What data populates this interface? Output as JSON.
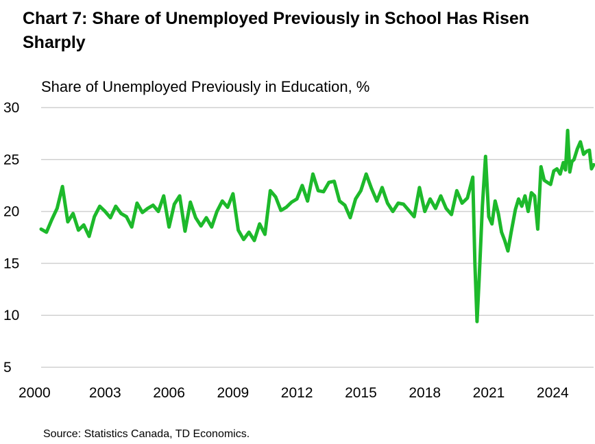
{
  "chart_data": {
    "type": "line",
    "title": "Chart 7: Share of Unemployed Previously in School Has Risen Sharply",
    "ylabel": "Share of Unemployed Previously in Education, %",
    "xlabel": "",
    "x_range": [
      2000.0,
      2025.92
    ],
    "ylim": [
      5,
      30
    ],
    "yticks": [
      "5",
      "10",
      "15",
      "20",
      "25",
      "30"
    ],
    "xticks": [
      "2000",
      "2003",
      "2006",
      "2009",
      "2012",
      "2015",
      "2018",
      "2021",
      "2024"
    ],
    "grid": "horizontal",
    "legend": "none",
    "series": [
      {
        "color": "#1db92b",
        "points": [
          [
            2000.0,
            18.3
          ],
          [
            2000.25,
            18.0
          ],
          [
            2000.5,
            19.2
          ],
          [
            2000.75,
            20.3
          ],
          [
            2001.0,
            22.4
          ],
          [
            2001.25,
            19.0
          ],
          [
            2001.5,
            19.8
          ],
          [
            2001.75,
            18.2
          ],
          [
            2002.0,
            18.7
          ],
          [
            2002.25,
            17.6
          ],
          [
            2002.5,
            19.5
          ],
          [
            2002.75,
            20.5
          ],
          [
            2003.0,
            20.0
          ],
          [
            2003.25,
            19.4
          ],
          [
            2003.5,
            20.5
          ],
          [
            2003.75,
            19.8
          ],
          [
            2004.0,
            19.5
          ],
          [
            2004.25,
            18.5
          ],
          [
            2004.5,
            20.8
          ],
          [
            2004.75,
            19.9
          ],
          [
            2005.0,
            20.3
          ],
          [
            2005.25,
            20.6
          ],
          [
            2005.5,
            20.0
          ],
          [
            2005.75,
            21.5
          ],
          [
            2006.0,
            18.5
          ],
          [
            2006.25,
            20.7
          ],
          [
            2006.5,
            21.5
          ],
          [
            2006.75,
            18.1
          ],
          [
            2007.0,
            20.9
          ],
          [
            2007.25,
            19.4
          ],
          [
            2007.5,
            18.6
          ],
          [
            2007.75,
            19.4
          ],
          [
            2008.0,
            18.5
          ],
          [
            2008.25,
            20.0
          ],
          [
            2008.5,
            21.0
          ],
          [
            2008.75,
            20.4
          ],
          [
            2009.0,
            21.7
          ],
          [
            2009.25,
            18.2
          ],
          [
            2009.5,
            17.3
          ],
          [
            2009.75,
            18.0
          ],
          [
            2010.0,
            17.2
          ],
          [
            2010.25,
            18.8
          ],
          [
            2010.5,
            17.8
          ],
          [
            2010.75,
            22.0
          ],
          [
            2011.0,
            21.4
          ],
          [
            2011.25,
            20.1
          ],
          [
            2011.5,
            20.4
          ],
          [
            2011.75,
            20.9
          ],
          [
            2012.0,
            21.2
          ],
          [
            2012.25,
            22.5
          ],
          [
            2012.5,
            21.0
          ],
          [
            2012.75,
            23.6
          ],
          [
            2013.0,
            22.0
          ],
          [
            2013.25,
            21.9
          ],
          [
            2013.5,
            22.8
          ],
          [
            2013.75,
            22.9
          ],
          [
            2014.0,
            21.0
          ],
          [
            2014.25,
            20.6
          ],
          [
            2014.5,
            19.4
          ],
          [
            2014.75,
            21.2
          ],
          [
            2015.0,
            22.0
          ],
          [
            2015.25,
            23.6
          ],
          [
            2015.5,
            22.2
          ],
          [
            2015.75,
            21.0
          ],
          [
            2016.0,
            22.3
          ],
          [
            2016.25,
            20.8
          ],
          [
            2016.5,
            20.0
          ],
          [
            2016.75,
            20.8
          ],
          [
            2017.0,
            20.7
          ],
          [
            2017.25,
            20.1
          ],
          [
            2017.5,
            19.5
          ],
          [
            2017.75,
            22.3
          ],
          [
            2018.0,
            20.0
          ],
          [
            2018.25,
            21.2
          ],
          [
            2018.5,
            20.3
          ],
          [
            2018.75,
            21.5
          ],
          [
            2019.0,
            20.3
          ],
          [
            2019.25,
            19.7
          ],
          [
            2019.5,
            22.0
          ],
          [
            2019.75,
            20.8
          ],
          [
            2020.0,
            21.3
          ],
          [
            2020.25,
            23.3
          ],
          [
            2020.35,
            15.0
          ],
          [
            2020.45,
            9.4
          ],
          [
            2020.55,
            13.5
          ],
          [
            2020.7,
            20.5
          ],
          [
            2020.85,
            25.3
          ],
          [
            2021.0,
            19.5
          ],
          [
            2021.15,
            18.8
          ],
          [
            2021.3,
            21.0
          ],
          [
            2021.45,
            19.8
          ],
          [
            2021.6,
            18.0
          ],
          [
            2021.75,
            17.2
          ],
          [
            2021.9,
            16.2
          ],
          [
            2022.05,
            18.0
          ],
          [
            2022.25,
            20.2
          ],
          [
            2022.4,
            21.2
          ],
          [
            2022.55,
            20.5
          ],
          [
            2022.7,
            21.5
          ],
          [
            2022.85,
            20.0
          ],
          [
            2023.0,
            21.8
          ],
          [
            2023.15,
            21.5
          ],
          [
            2023.3,
            18.3
          ],
          [
            2023.45,
            24.3
          ],
          [
            2023.6,
            23.0
          ],
          [
            2023.75,
            22.8
          ],
          [
            2023.9,
            22.6
          ],
          [
            2024.05,
            23.9
          ],
          [
            2024.2,
            24.1
          ],
          [
            2024.35,
            23.6
          ],
          [
            2024.5,
            24.7
          ],
          [
            2024.6,
            24.0
          ],
          [
            2024.7,
            27.8
          ],
          [
            2024.8,
            23.8
          ],
          [
            2024.9,
            24.8
          ],
          [
            2025.0,
            25.0
          ],
          [
            2025.15,
            26.0
          ],
          [
            2025.3,
            26.7
          ],
          [
            2025.45,
            25.5
          ],
          [
            2025.6,
            25.8
          ],
          [
            2025.72,
            25.9
          ],
          [
            2025.82,
            24.1
          ],
          [
            2025.92,
            24.5
          ]
        ]
      }
    ]
  },
  "source": "Source: Statistics Canada, TD Economics."
}
